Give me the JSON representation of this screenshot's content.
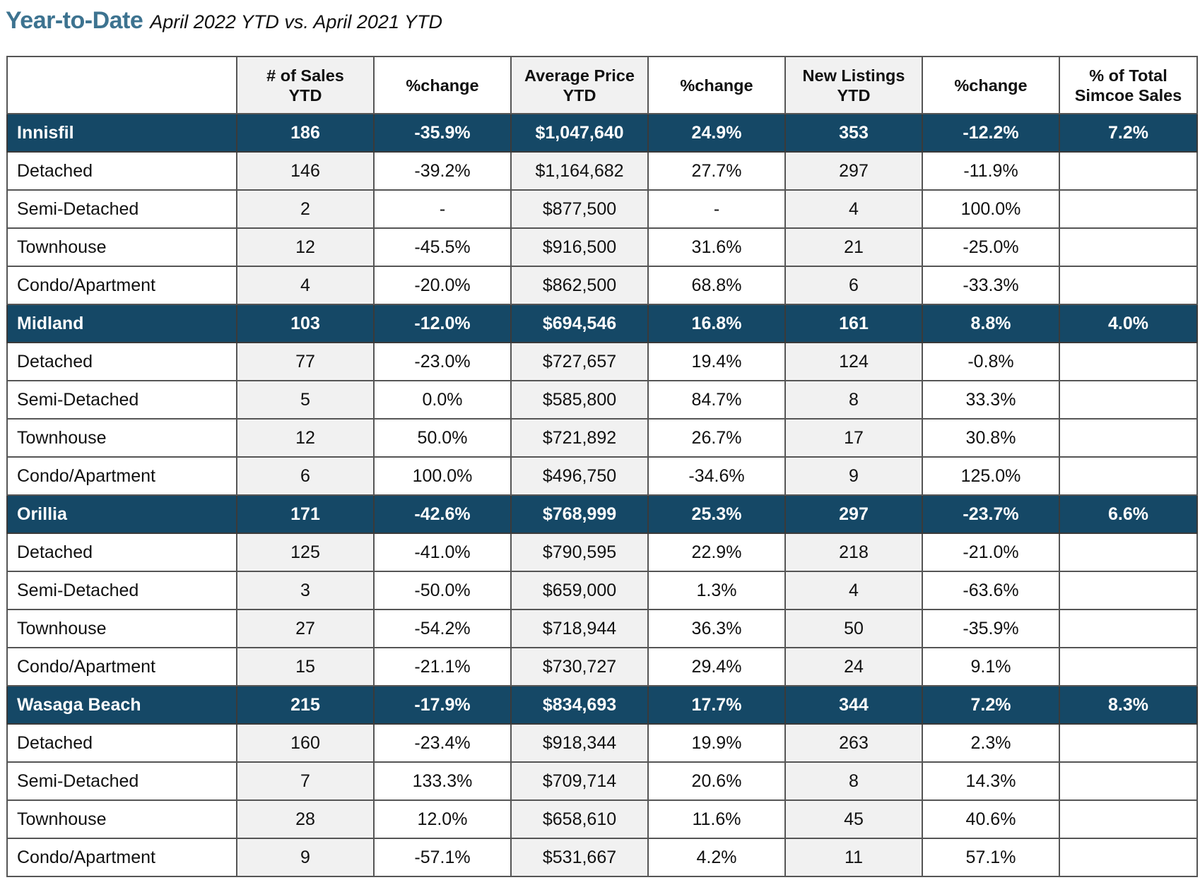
{
  "title": {
    "main": "Year-to-Date",
    "sub": "April 2022 YTD vs. April 2021 YTD"
  },
  "colors": {
    "title_accent": "#3d7390",
    "region_row_bg": "#154866",
    "shaded_column_bg": "#f1f1f1"
  },
  "table": {
    "headers": [
      {
        "line1": "",
        "line2": ""
      },
      {
        "line1": "# of Sales",
        "line2": "YTD"
      },
      {
        "line1": "%change",
        "line2": ""
      },
      {
        "line1": "Average Price",
        "line2": "YTD"
      },
      {
        "line1": "%change",
        "line2": ""
      },
      {
        "line1": "New Listings",
        "line2": "YTD"
      },
      {
        "line1": "%change",
        "line2": ""
      },
      {
        "line1": "% of Total",
        "line2": "Simcoe Sales"
      }
    ],
    "rows": [
      {
        "type": "region",
        "cells": [
          "Innisfil",
          "186",
          "-35.9%",
          "$1,047,640",
          "24.9%",
          "353",
          "-12.2%",
          "7.2%"
        ]
      },
      {
        "type": "sub",
        "cells": [
          "Detached",
          "146",
          "-39.2%",
          "$1,164,682",
          "27.7%",
          "297",
          "-11.9%",
          ""
        ]
      },
      {
        "type": "sub",
        "cells": [
          "Semi-Detached",
          "2",
          "-",
          "$877,500",
          "-",
          "4",
          "100.0%",
          ""
        ]
      },
      {
        "type": "sub",
        "cells": [
          "Townhouse",
          "12",
          "-45.5%",
          "$916,500",
          "31.6%",
          "21",
          "-25.0%",
          ""
        ]
      },
      {
        "type": "sub",
        "cells": [
          "Condo/Apartment",
          "4",
          "-20.0%",
          "$862,500",
          "68.8%",
          "6",
          "-33.3%",
          ""
        ]
      },
      {
        "type": "region",
        "cells": [
          "Midland",
          "103",
          "-12.0%",
          "$694,546",
          "16.8%",
          "161",
          "8.8%",
          "4.0%"
        ]
      },
      {
        "type": "sub",
        "cells": [
          "Detached",
          "77",
          "-23.0%",
          "$727,657",
          "19.4%",
          "124",
          "-0.8%",
          ""
        ]
      },
      {
        "type": "sub",
        "cells": [
          "Semi-Detached",
          "5",
          "0.0%",
          "$585,800",
          "84.7%",
          "8",
          "33.3%",
          ""
        ]
      },
      {
        "type": "sub",
        "cells": [
          "Townhouse",
          "12",
          "50.0%",
          "$721,892",
          "26.7%",
          "17",
          "30.8%",
          ""
        ]
      },
      {
        "type": "sub",
        "cells": [
          "Condo/Apartment",
          "6",
          "100.0%",
          "$496,750",
          "-34.6%",
          "9",
          "125.0%",
          ""
        ]
      },
      {
        "type": "region",
        "cells": [
          "Orillia",
          "171",
          "-42.6%",
          "$768,999",
          "25.3%",
          "297",
          "-23.7%",
          "6.6%"
        ]
      },
      {
        "type": "sub",
        "cells": [
          "Detached",
          "125",
          "-41.0%",
          "$790,595",
          "22.9%",
          "218",
          "-21.0%",
          ""
        ]
      },
      {
        "type": "sub",
        "cells": [
          "Semi-Detached",
          "3",
          "-50.0%",
          "$659,000",
          "1.3%",
          "4",
          "-63.6%",
          ""
        ]
      },
      {
        "type": "sub",
        "cells": [
          "Townhouse",
          "27",
          "-54.2%",
          "$718,944",
          "36.3%",
          "50",
          "-35.9%",
          ""
        ]
      },
      {
        "type": "sub",
        "cells": [
          "Condo/Apartment",
          "15",
          "-21.1%",
          "$730,727",
          "29.4%",
          "24",
          "9.1%",
          ""
        ]
      },
      {
        "type": "region",
        "cells": [
          "Wasaga Beach",
          "215",
          "-17.9%",
          "$834,693",
          "17.7%",
          "344",
          "7.2%",
          "8.3%"
        ]
      },
      {
        "type": "sub",
        "cells": [
          "Detached",
          "160",
          "-23.4%",
          "$918,344",
          "19.9%",
          "263",
          "2.3%",
          ""
        ]
      },
      {
        "type": "sub",
        "cells": [
          "Semi-Detached",
          "7",
          "133.3%",
          "$709,714",
          "20.6%",
          "8",
          "14.3%",
          ""
        ]
      },
      {
        "type": "sub",
        "cells": [
          "Townhouse",
          "28",
          "12.0%",
          "$658,610",
          "11.6%",
          "45",
          "40.6%",
          ""
        ]
      },
      {
        "type": "sub",
        "cells": [
          "Condo/Apartment",
          "9",
          "-57.1%",
          "$531,667",
          "4.2%",
          "11",
          "57.1%",
          ""
        ]
      }
    ]
  }
}
